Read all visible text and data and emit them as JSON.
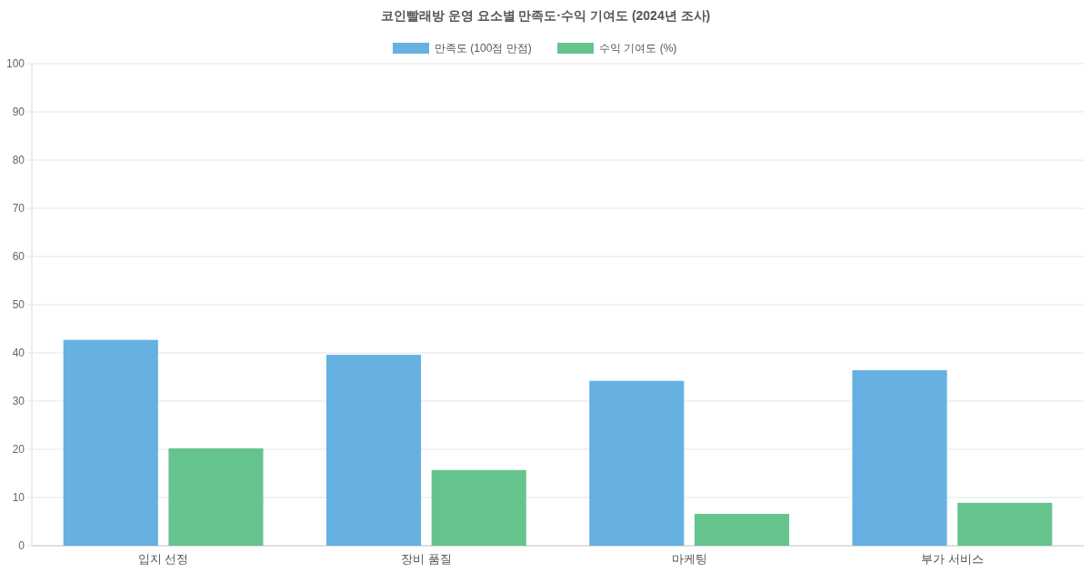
{
  "chart_data": {
    "type": "bar",
    "title": "코인빨래방 운영 요소별 만족도·수익 기여도 (2024년 조사)",
    "categories": [
      "입지 선정",
      "장비 품질",
      "마케팅",
      "부가 서비스"
    ],
    "series": [
      {
        "name": "만족도 (100점 만점)",
        "color": "#66b0e2",
        "values": [
          42.7,
          39.6,
          34.2,
          36.4
        ]
      },
      {
        "name": "수익 기여도 (%)",
        "color": "#65c48e",
        "values": [
          20.2,
          15.7,
          6.6,
          8.9
        ]
      }
    ],
    "ylim": [
      0,
      100
    ],
    "yticks": [
      0,
      10,
      20,
      30,
      40,
      50,
      60,
      70,
      80,
      90,
      100
    ],
    "grid": "y",
    "legend": "top"
  }
}
